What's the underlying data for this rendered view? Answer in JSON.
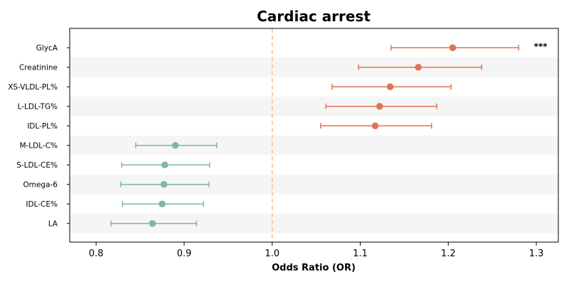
{
  "chart_data": {
    "type": "forest",
    "title": "Cardiac arrest",
    "xlabel": "Odds Ratio (OR)",
    "xlim": [
      0.77,
      1.325
    ],
    "xticks": [
      0.8,
      0.9,
      1.0,
      1.1,
      1.2,
      1.3
    ],
    "xtick_labels": [
      "0.8",
      "0.9",
      "1.0",
      "1.1",
      "1.2",
      "1.3"
    ],
    "reference_line": 1.0,
    "reference_color": "#f5c27a",
    "positive_color": "#de7455",
    "negative_color": "#80b79a",
    "band_color": "#f5f5f5",
    "grid": false,
    "rows": [
      {
        "label": "GlycA",
        "or": 1.205,
        "lower": 1.135,
        "upper": 1.28,
        "annotation": "***"
      },
      {
        "label": "Creatinine",
        "or": 1.166,
        "lower": 1.098,
        "upper": 1.238,
        "annotation": ""
      },
      {
        "label": "XS-VLDL-PL%",
        "or": 1.134,
        "lower": 1.068,
        "upper": 1.203,
        "annotation": ""
      },
      {
        "label": "L-LDL-TG%",
        "or": 1.122,
        "lower": 1.061,
        "upper": 1.187,
        "annotation": ""
      },
      {
        "label": "IDL-PL%",
        "or": 1.117,
        "lower": 1.055,
        "upper": 1.181,
        "annotation": ""
      },
      {
        "label": "M-LDL-C%",
        "or": 0.89,
        "lower": 0.845,
        "upper": 0.937,
        "annotation": ""
      },
      {
        "label": "S-LDL-CE%",
        "or": 0.878,
        "lower": 0.829,
        "upper": 0.929,
        "annotation": ""
      },
      {
        "label": "Omega-6",
        "or": 0.877,
        "lower": 0.828,
        "upper": 0.928,
        "annotation": ""
      },
      {
        "label": "IDL-CE%",
        "or": 0.875,
        "lower": 0.83,
        "upper": 0.922,
        "annotation": ""
      },
      {
        "label": "LA",
        "or": 0.864,
        "lower": 0.817,
        "upper": 0.914,
        "annotation": ""
      }
    ]
  }
}
